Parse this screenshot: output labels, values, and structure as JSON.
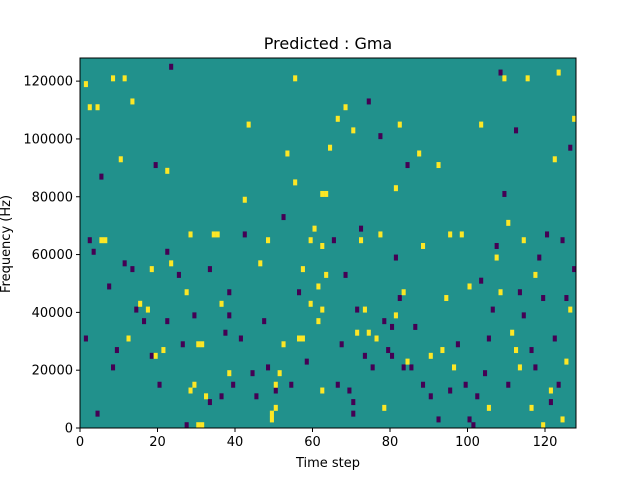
{
  "chart_data": {
    "type": "heatmap",
    "title": "Predicted : Gma",
    "xlabel": "Time step",
    "ylabel": "Frequency (Hz)",
    "xlim": [
      0,
      128
    ],
    "ylim": [
      0,
      128000
    ],
    "xticks": [
      0,
      20,
      40,
      60,
      80,
      100,
      120
    ],
    "xtick_labels": [
      "0",
      "20",
      "40",
      "60",
      "80",
      "100",
      "120"
    ],
    "yticks": [
      0,
      20000,
      40000,
      60000,
      80000,
      100000,
      120000
    ],
    "ytick_labels": [
      "0",
      "20000",
      "40000",
      "60000",
      "80000",
      "100000",
      "120000"
    ],
    "n_time_steps": 128,
    "n_freq_bins": 64,
    "bin_hz": 2000,
    "grid": false,
    "colormap": "viridis",
    "colors": {
      "background": "#21918c",
      "low": "#440154",
      "high": "#fde725"
    },
    "cells_note": "bright = value 1 (high), dark = value 0 (low); t = time-step start, f = frequency bin lower edge (Hz)",
    "bright_cells": [
      {
        "t": 1,
        "f": 118000
      },
      {
        "t": 2,
        "f": 110000
      },
      {
        "t": 4,
        "f": 110000
      },
      {
        "t": 5,
        "f": 64000
      },
      {
        "t": 6,
        "f": 64000
      },
      {
        "t": 8,
        "f": 120000
      },
      {
        "t": 11,
        "f": 120000
      },
      {
        "t": 13,
        "f": 112000
      },
      {
        "t": 10,
        "f": 92000
      },
      {
        "t": 12,
        "f": 30000
      },
      {
        "t": 15,
        "f": 42000
      },
      {
        "t": 17,
        "f": 40000
      },
      {
        "t": 18,
        "f": 54000
      },
      {
        "t": 19,
        "f": 24000
      },
      {
        "t": 21,
        "f": 26000
      },
      {
        "t": 22,
        "f": 88000
      },
      {
        "t": 23,
        "f": 56000
      },
      {
        "t": 27,
        "f": 46000
      },
      {
        "t": 28,
        "f": 66000
      },
      {
        "t": 28,
        "f": 12000
      },
      {
        "t": 29,
        "f": 14000
      },
      {
        "t": 30,
        "f": 28000
      },
      {
        "t": 31,
        "f": 28000
      },
      {
        "t": 30,
        "f": 0
      },
      {
        "t": 31,
        "f": 0
      },
      {
        "t": 32,
        "f": 10000
      },
      {
        "t": 34,
        "f": 66000
      },
      {
        "t": 35,
        "f": 66000
      },
      {
        "t": 36,
        "f": 42000
      },
      {
        "t": 38,
        "f": 18000
      },
      {
        "t": 42,
        "f": 78000
      },
      {
        "t": 43,
        "f": 104000
      },
      {
        "t": 46,
        "f": 56000
      },
      {
        "t": 48,
        "f": 64000
      },
      {
        "t": 49,
        "f": 4000
      },
      {
        "t": 49,
        "f": 2000
      },
      {
        "t": 50,
        "f": 6000
      },
      {
        "t": 50,
        "f": 14000
      },
      {
        "t": 51,
        "f": 18000
      },
      {
        "t": 52,
        "f": 28000
      },
      {
        "t": 53,
        "f": 94000
      },
      {
        "t": 55,
        "f": 84000
      },
      {
        "t": 55,
        "f": 120000
      },
      {
        "t": 56,
        "f": 30000
      },
      {
        "t": 57,
        "f": 30000
      },
      {
        "t": 57,
        "f": 54000
      },
      {
        "t": 59,
        "f": 64000
      },
      {
        "t": 59,
        "f": 42000
      },
      {
        "t": 60,
        "f": 68000
      },
      {
        "t": 61,
        "f": 48000
      },
      {
        "t": 62,
        "f": 62000
      },
      {
        "t": 62,
        "f": 40000
      },
      {
        "t": 62,
        "f": 12000
      },
      {
        "t": 63,
        "f": 52000
      },
      {
        "t": 61,
        "f": 36000
      },
      {
        "t": 62,
        "f": 80000
      },
      {
        "t": 63,
        "f": 80000
      },
      {
        "t": 64,
        "f": 96000
      },
      {
        "t": 66,
        "f": 106000
      },
      {
        "t": 68,
        "f": 110000
      },
      {
        "t": 70,
        "f": 102000
      },
      {
        "t": 71,
        "f": 32000
      },
      {
        "t": 72,
        "f": 64000
      },
      {
        "t": 73,
        "f": 40000
      },
      {
        "t": 74,
        "f": 32000
      },
      {
        "t": 76,
        "f": 30000
      },
      {
        "t": 77,
        "f": 66000
      },
      {
        "t": 78,
        "f": 6000
      },
      {
        "t": 81,
        "f": 82000
      },
      {
        "t": 81,
        "f": 38000
      },
      {
        "t": 82,
        "f": 104000
      },
      {
        "t": 83,
        "f": 46000
      },
      {
        "t": 84,
        "f": 22000
      },
      {
        "t": 87,
        "f": 94000
      },
      {
        "t": 88,
        "f": 62000
      },
      {
        "t": 90,
        "f": 24000
      },
      {
        "t": 92,
        "f": 90000
      },
      {
        "t": 93,
        "f": 26000
      },
      {
        "t": 94,
        "f": 44000
      },
      {
        "t": 95,
        "f": 66000
      },
      {
        "t": 96,
        "f": 20000
      },
      {
        "t": 98,
        "f": 66000
      },
      {
        "t": 100,
        "f": 48000
      },
      {
        "t": 103,
        "f": 104000
      },
      {
        "t": 105,
        "f": 6000
      },
      {
        "t": 107,
        "f": 58000
      },
      {
        "t": 108,
        "f": 46000
      },
      {
        "t": 109,
        "f": 120000
      },
      {
        "t": 110,
        "f": 70000
      },
      {
        "t": 111,
        "f": 32000
      },
      {
        "t": 112,
        "f": 26000
      },
      {
        "t": 113,
        "f": 20000
      },
      {
        "t": 114,
        "f": 64000
      },
      {
        "t": 115,
        "f": 120000
      },
      {
        "t": 116,
        "f": 6000
      },
      {
        "t": 117,
        "f": 52000
      },
      {
        "t": 119,
        "f": 0
      },
      {
        "t": 121,
        "f": 12000
      },
      {
        "t": 122,
        "f": 92000
      },
      {
        "t": 123,
        "f": 122000
      },
      {
        "t": 124,
        "f": 2000
      },
      {
        "t": 125,
        "f": 22000
      },
      {
        "t": 126,
        "f": 40000
      },
      {
        "t": 127,
        "f": 106000
      }
    ],
    "dark_cells": [
      {
        "t": 1,
        "f": 30000
      },
      {
        "t": 2,
        "f": 64000
      },
      {
        "t": 3,
        "f": 60000
      },
      {
        "t": 4,
        "f": 4000
      },
      {
        "t": 5,
        "f": 86000
      },
      {
        "t": 7,
        "f": 48000
      },
      {
        "t": 8,
        "f": 20000
      },
      {
        "t": 9,
        "f": 26000
      },
      {
        "t": 11,
        "f": 56000
      },
      {
        "t": 13,
        "f": 54000
      },
      {
        "t": 14,
        "f": 40000
      },
      {
        "t": 16,
        "f": 36000
      },
      {
        "t": 18,
        "f": 24000
      },
      {
        "t": 19,
        "f": 90000
      },
      {
        "t": 20,
        "f": 14000
      },
      {
        "t": 22,
        "f": 36000
      },
      {
        "t": 22,
        "f": 60000
      },
      {
        "t": 23,
        "f": 124000
      },
      {
        "t": 25,
        "f": 52000
      },
      {
        "t": 26,
        "f": 28000
      },
      {
        "t": 27,
        "f": 0
      },
      {
        "t": 29,
        "f": 38000
      },
      {
        "t": 33,
        "f": 54000
      },
      {
        "t": 33,
        "f": 8000
      },
      {
        "t": 36,
        "f": 10000
      },
      {
        "t": 37,
        "f": 32000
      },
      {
        "t": 38,
        "f": 38000
      },
      {
        "t": 38,
        "f": 46000
      },
      {
        "t": 39,
        "f": 14000
      },
      {
        "t": 41,
        "f": 30000
      },
      {
        "t": 42,
        "f": 66000
      },
      {
        "t": 44,
        "f": 18000
      },
      {
        "t": 45,
        "f": 10000
      },
      {
        "t": 47,
        "f": 36000
      },
      {
        "t": 48,
        "f": 20000
      },
      {
        "t": 50,
        "f": 12000
      },
      {
        "t": 52,
        "f": 72000
      },
      {
        "t": 54,
        "f": 14000
      },
      {
        "t": 56,
        "f": 46000
      },
      {
        "t": 58,
        "f": 22000
      },
      {
        "t": 65,
        "f": 64000
      },
      {
        "t": 66,
        "f": 14000
      },
      {
        "t": 67,
        "f": 28000
      },
      {
        "t": 68,
        "f": 52000
      },
      {
        "t": 69,
        "f": 12000
      },
      {
        "t": 70,
        "f": 8000
      },
      {
        "t": 70,
        "f": 4000
      },
      {
        "t": 71,
        "f": 40000
      },
      {
        "t": 72,
        "f": 68000
      },
      {
        "t": 73,
        "f": 24000
      },
      {
        "t": 74,
        "f": 112000
      },
      {
        "t": 75,
        "f": 20000
      },
      {
        "t": 77,
        "f": 100000
      },
      {
        "t": 78,
        "f": 36000
      },
      {
        "t": 79,
        "f": 26000
      },
      {
        "t": 80,
        "f": 34000
      },
      {
        "t": 80,
        "f": 24000
      },
      {
        "t": 81,
        "f": 58000
      },
      {
        "t": 82,
        "f": 44000
      },
      {
        "t": 83,
        "f": 20000
      },
      {
        "t": 84,
        "f": 90000
      },
      {
        "t": 85,
        "f": 20000
      },
      {
        "t": 86,
        "f": 34000
      },
      {
        "t": 88,
        "f": 14000
      },
      {
        "t": 90,
        "f": 10000
      },
      {
        "t": 92,
        "f": 2000
      },
      {
        "t": 95,
        "f": 12000
      },
      {
        "t": 97,
        "f": 28000
      },
      {
        "t": 99,
        "f": 14000
      },
      {
        "t": 100,
        "f": 2000
      },
      {
        "t": 101,
        "f": 0
      },
      {
        "t": 102,
        "f": 10000
      },
      {
        "t": 103,
        "f": 50000
      },
      {
        "t": 104,
        "f": 18000
      },
      {
        "t": 105,
        "f": 30000
      },
      {
        "t": 106,
        "f": 40000
      },
      {
        "t": 107,
        "f": 62000
      },
      {
        "t": 108,
        "f": 122000
      },
      {
        "t": 109,
        "f": 80000
      },
      {
        "t": 110,
        "f": 14000
      },
      {
        "t": 112,
        "f": 102000
      },
      {
        "t": 113,
        "f": 46000
      },
      {
        "t": 114,
        "f": 38000
      },
      {
        "t": 116,
        "f": 26000
      },
      {
        "t": 117,
        "f": 20000
      },
      {
        "t": 118,
        "f": 58000
      },
      {
        "t": 119,
        "f": 44000
      },
      {
        "t": 120,
        "f": 66000
      },
      {
        "t": 121,
        "f": 8000
      },
      {
        "t": 122,
        "f": 30000
      },
      {
        "t": 123,
        "f": 14000
      },
      {
        "t": 124,
        "f": 64000
      },
      {
        "t": 125,
        "f": 44000
      },
      {
        "t": 126,
        "f": 96000
      },
      {
        "t": 127,
        "f": 54000
      }
    ]
  }
}
